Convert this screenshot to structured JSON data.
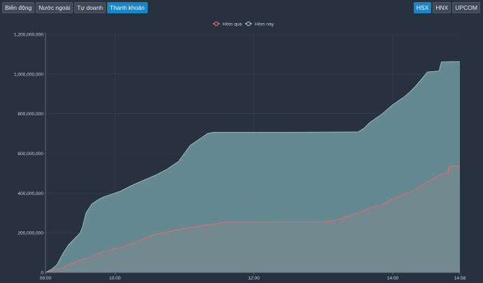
{
  "tabs": [
    {
      "label": "Biến động",
      "active": false
    },
    {
      "label": "Nước ngoài",
      "active": false
    },
    {
      "label": "Tự doanh",
      "active": false
    },
    {
      "label": "Thanh khoản",
      "active": true
    }
  ],
  "markets": [
    {
      "label": "HSX",
      "active": true
    },
    {
      "label": "HNX",
      "active": false
    },
    {
      "label": "UPCOM",
      "active": false
    }
  ],
  "colors": {
    "today_fill": "#6a9097",
    "today_line": "#9bb9bf",
    "yesterday_fill": "#8a8a8e",
    "yesterday_line": "#e06a68",
    "axis_text": "#c9d1d8",
    "grid": "#344150"
  },
  "chart_data": {
    "type": "area",
    "x_unit": "time of day (HH:MM)",
    "xlim": [
      "09:00",
      "14:58"
    ],
    "x_ticks": [
      "09:00",
      "10:00",
      "12:00",
      "14:00",
      "14:58"
    ],
    "ylim": [
      0,
      1200000000
    ],
    "y_ticks": [
      "0",
      "200,000,000",
      "400,000,000",
      "600,000,000",
      "800,000,000",
      "1,000,000,000",
      "1,200,000,000"
    ],
    "y_tick_values": [
      0,
      200000000,
      400000000,
      600000000,
      800000000,
      1000000000,
      1200000000
    ],
    "legend_position": "top-center",
    "grid": true,
    "series": [
      {
        "name": "Hôm qua",
        "key": "yesterday",
        "points": [
          [
            "09:00",
            0
          ],
          [
            "09:05",
            7000000
          ],
          [
            "09:15",
            25000000
          ],
          [
            "09:20",
            40000000
          ],
          [
            "09:30",
            60000000
          ],
          [
            "09:40",
            80000000
          ],
          [
            "09:45",
            95000000
          ],
          [
            "09:55",
            112000000
          ],
          [
            "10:05",
            125000000
          ],
          [
            "10:15",
            145000000
          ],
          [
            "10:25",
            170000000
          ],
          [
            "10:35",
            192000000
          ],
          [
            "10:50",
            210000000
          ],
          [
            "11:00",
            222000000
          ],
          [
            "11:15",
            235000000
          ],
          [
            "11:30",
            248000000
          ],
          [
            "11:35",
            253000000
          ],
          [
            "12:00",
            254000000
          ],
          [
            "12:30",
            255000000
          ],
          [
            "13:00",
            256000000
          ],
          [
            "13:10",
            262000000
          ],
          [
            "13:20",
            280000000
          ],
          [
            "13:30",
            300000000
          ],
          [
            "13:40",
            325000000
          ],
          [
            "13:50",
            340000000
          ],
          [
            "13:55",
            355000000
          ],
          [
            "14:00",
            370000000
          ],
          [
            "14:05",
            382000000
          ],
          [
            "14:10",
            394000000
          ],
          [
            "14:15",
            405000000
          ],
          [
            "14:20",
            420000000
          ],
          [
            "14:25",
            438000000
          ],
          [
            "14:30",
            455000000
          ],
          [
            "14:35",
            470000000
          ],
          [
            "14:40",
            490000000
          ],
          [
            "14:45",
            500000000
          ],
          [
            "14:48",
            500000000
          ],
          [
            "14:48",
            530000000
          ],
          [
            "14:52",
            537000000
          ],
          [
            "14:58",
            540000000
          ]
        ]
      },
      {
        "name": "Hôm nay",
        "key": "today",
        "points": [
          [
            "09:00",
            0
          ],
          [
            "09:05",
            15000000
          ],
          [
            "09:10",
            40000000
          ],
          [
            "09:15",
            95000000
          ],
          [
            "09:20",
            140000000
          ],
          [
            "09:25",
            170000000
          ],
          [
            "09:30",
            200000000
          ],
          [
            "09:32",
            230000000
          ],
          [
            "09:35",
            300000000
          ],
          [
            "09:40",
            345000000
          ],
          [
            "09:45",
            365000000
          ],
          [
            "09:50",
            380000000
          ],
          [
            "09:55",
            390000000
          ],
          [
            "10:05",
            410000000
          ],
          [
            "10:15",
            440000000
          ],
          [
            "10:25",
            465000000
          ],
          [
            "10:35",
            490000000
          ],
          [
            "10:45",
            520000000
          ],
          [
            "10:55",
            560000000
          ],
          [
            "11:00",
            600000000
          ],
          [
            "11:05",
            640000000
          ],
          [
            "11:10",
            660000000
          ],
          [
            "11:15",
            680000000
          ],
          [
            "11:20",
            700000000
          ],
          [
            "11:25",
            706000000
          ],
          [
            "12:00",
            706000000
          ],
          [
            "12:30",
            706000000
          ],
          [
            "13:00",
            707000000
          ],
          [
            "13:30",
            708000000
          ],
          [
            "13:35",
            725000000
          ],
          [
            "13:40",
            755000000
          ],
          [
            "13:45",
            775000000
          ],
          [
            "13:50",
            795000000
          ],
          [
            "13:55",
            820000000
          ],
          [
            "14:00",
            845000000
          ],
          [
            "14:05",
            865000000
          ],
          [
            "14:10",
            885000000
          ],
          [
            "14:15",
            910000000
          ],
          [
            "14:20",
            940000000
          ],
          [
            "14:25",
            975000000
          ],
          [
            "14:30",
            1010000000
          ],
          [
            "14:35",
            1012000000
          ],
          [
            "14:40",
            1015000000
          ],
          [
            "14:42",
            1060000000
          ],
          [
            "14:50",
            1062000000
          ],
          [
            "14:58",
            1062000000
          ]
        ]
      }
    ]
  }
}
